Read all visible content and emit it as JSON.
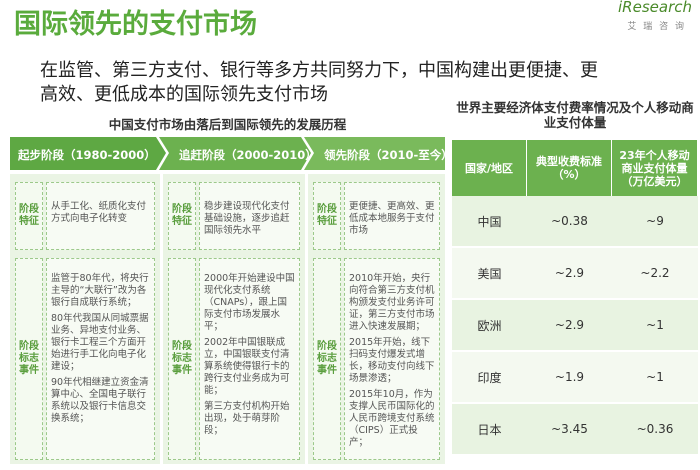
{
  "header": {
    "title": "国际领先的支付市场",
    "logo": "iResearch",
    "logo_sub": "艾 瑞 咨 询",
    "subtitle": [
      "在监管、第三方支付、银行等多方共同努力下，中国构建出更便捷、更",
      "高效、更低成本的国际领先支付市场"
    ]
  },
  "timeline": {
    "title": "中国支付市场由落后到国际领先的发展历程",
    "row_labels": [
      "阶段特征",
      "阶段标志事件"
    ],
    "stages": [
      {
        "name": "起步阶段（1980-2000）",
        "feature": "从手工化、纸质化支付方式向电子化转变",
        "events": [
          "监管于80年代，将央行主导的“大联行”改为各银行自成联行系统；",
          "80年代我国从同城票据业务、异地支付业务、银行卡工程三个方面开始进行手工化向电子化建设；",
          "90年代相继建立资金清算中心、全国电子联行系统以及银行卡信息交换系统；"
        ]
      },
      {
        "name": "追赶阶段（2000-2010）",
        "feature": "稳步建设现代化支付基础设施，逐步追赶国际领先水平",
        "events": [
          "2000年开始建设中国现代化支付系统（CNAPs），跟上国际支付市场发展水平；",
          "2002年中国银联成立，中国银联支付清算系统使得银行卡的跨行支付业务成为可能；",
          "第三方支付机构开始出现，处于萌芽阶段；"
        ]
      },
      {
        "name": "领先阶段（2010-至今）",
        "feature": "更便捷、更高效、更低成本地服务于支付市场",
        "events": [
          "2010年开始，央行向符合第三方支付机构颁发支付业务许可证，第三方支付市场进入快速发展期；",
          "2015年开始，线下扫码支付爆发式增长，移动支付向线下场景渗透；",
          "2015年10月，作为支撑人民币国际化的人民币跨境支付系统（CIPS）正式投产；"
        ]
      }
    ]
  },
  "table": {
    "title": "世界主要经济体支付费率情况及个人移动商业支付体量",
    "columns": [
      "国家/地区",
      "典型收费标准（%）",
      "23年个人移动商业支付体量（万亿美元）"
    ],
    "rows": [
      [
        "中国",
        "~0.38",
        "~9"
      ],
      [
        "美国",
        "~2.9",
        "~2.2"
      ],
      [
        "欧洲",
        "~2.9",
        "~1"
      ],
      [
        "印度",
        "~1.9",
        "~1"
      ],
      [
        "日本",
        "~3.45",
        "~0.36"
      ]
    ]
  }
}
